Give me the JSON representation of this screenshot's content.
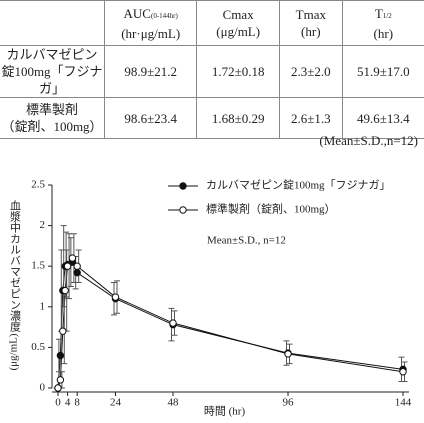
{
  "table": {
    "headers": [
      {
        "title": "AUC",
        "sub": "(0-144hr)",
        "unit": "(hr·μg/mL)"
      },
      {
        "title": "Cmax",
        "unit": "(μg/mL)"
      },
      {
        "title": "Tmax",
        "unit": "(hr)"
      },
      {
        "title": "T",
        "sub": "1/2",
        "unit": "(hr)"
      }
    ],
    "rows": [
      {
        "name": [
          "カルバマゼピン",
          "錠100mg「フジナガ」"
        ],
        "cells": [
          "98.9±21.2",
          "1.72±0.18",
          "2.3±2.0",
          "51.9±17.0"
        ]
      },
      {
        "name": [
          "標準製剤",
          "（錠剤、100mg）"
        ],
        "cells": [
          "98.6±23.4",
          "1.68±0.29",
          "2.6±1.3",
          "49.6±13.4"
        ]
      }
    ],
    "note": "(Mean±S.D.,n=12)"
  },
  "chart_data": {
    "type": "line",
    "x_label": "時間 (hr)",
    "y_label": "血漿中カルバマゼピン濃度",
    "y_unit": "(μg/mL)",
    "annotation": "Mean±S.D., n=12",
    "x": [
      0,
      1,
      2,
      3,
      4,
      6,
      8,
      24,
      48,
      96,
      144
    ],
    "xlim": [
      0,
      144
    ],
    "xticks": [
      0,
      4,
      8,
      24,
      48,
      96,
      144
    ],
    "ylim": [
      0,
      2.5
    ],
    "yticks": [
      0,
      0.5,
      1,
      1.5,
      2,
      2.5
    ],
    "series": [
      {
        "name": "カルバマゼピン錠100mg「フジナガ」",
        "color": "#111111",
        "marker": "filled",
        "values": [
          0,
          0.4,
          1.2,
          1.5,
          1.52,
          1.55,
          1.42,
          1.1,
          0.78,
          0.43,
          0.23
        ],
        "errors": [
          0,
          0.2,
          0.5,
          0.5,
          0.4,
          0.3,
          0.2,
          0.2,
          0.2,
          0.15,
          0.15
        ]
      },
      {
        "name": "標準製剤（錠剤、100mg）",
        "color": "#111111",
        "marker": "open",
        "values": [
          0,
          0.1,
          0.7,
          1.2,
          1.5,
          1.6,
          1.5,
          1.12,
          0.8,
          0.42,
          0.2
        ],
        "errors": [
          0,
          0.1,
          0.4,
          0.5,
          0.4,
          0.3,
          0.2,
          0.2,
          0.15,
          0.12,
          0.12
        ]
      }
    ]
  }
}
